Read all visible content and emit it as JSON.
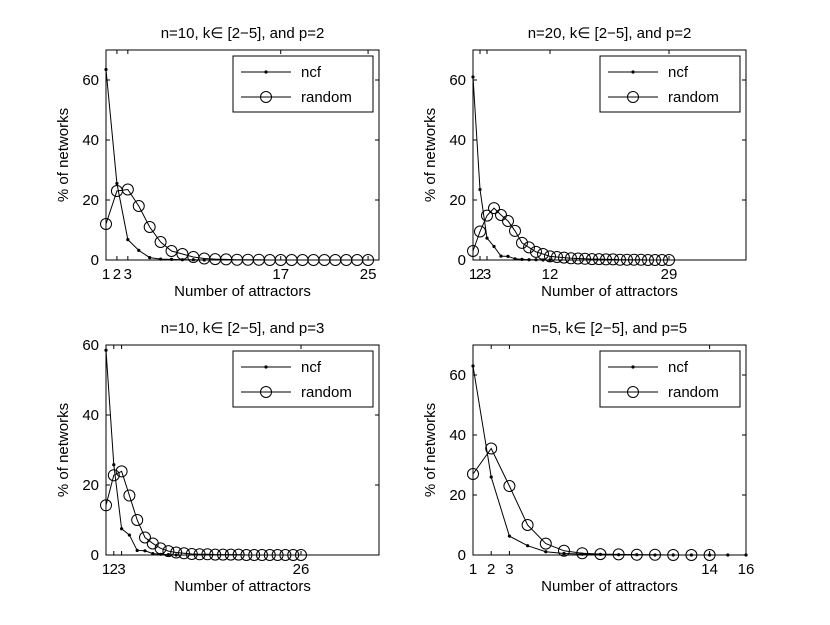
{
  "chart_data": [
    {
      "type": "line",
      "title": "n=10, k∈ [2−5], and p=2",
      "xlabel": "Number of attractors",
      "ylabel": "% of networks",
      "xlim": [
        1,
        26
      ],
      "ylim": [
        0,
        70
      ],
      "xticks": [
        1,
        2,
        3,
        17,
        25
      ],
      "yticks": [
        0,
        20,
        40,
        60
      ],
      "legend": {
        "placement": "top-right",
        "entries": [
          "ncf",
          "random"
        ]
      },
      "grid": false,
      "series": [
        {
          "name": "ncf",
          "marker": "dot",
          "x": [
            1,
            2,
            3,
            4,
            5,
            6,
            7,
            8,
            9,
            10
          ],
          "y": [
            63.5,
            25.5,
            6.8,
            3.2,
            0.8,
            0.3,
            0.2,
            0.1,
            0.1,
            0
          ]
        },
        {
          "name": "random",
          "marker": "circle",
          "x": [
            1,
            2,
            3,
            4,
            5,
            6,
            7,
            8,
            9,
            10,
            11,
            12,
            13,
            14,
            15,
            16,
            17,
            18,
            19,
            20,
            21,
            22,
            23,
            24,
            25
          ],
          "y": [
            12,
            23,
            23.5,
            18,
            11,
            6,
            3,
            2,
            1,
            0.5,
            0.3,
            0.2,
            0.1,
            0.1,
            0.1,
            0,
            0,
            0,
            0,
            0,
            0,
            0,
            0,
            0,
            0
          ]
        }
      ]
    },
    {
      "type": "line",
      "title": "n=20, k∈ [2−5], and p=2",
      "xlabel": "Number of attractors",
      "ylabel": "% of networks",
      "xlim": [
        1,
        40
      ],
      "ylim": [
        0,
        70
      ],
      "xticks": [
        1,
        2,
        3,
        12,
        29
      ],
      "yticks": [
        0,
        20,
        40,
        60
      ],
      "legend": {
        "placement": "top-right",
        "entries": [
          "ncf",
          "random"
        ]
      },
      "grid": false,
      "series": [
        {
          "name": "ncf",
          "marker": "dot",
          "x": [
            1,
            2,
            3,
            4,
            5,
            6,
            7,
            8,
            9,
            10,
            11,
            12
          ],
          "y": [
            61,
            23.5,
            7.3,
            4.5,
            1.3,
            1.2,
            0.4,
            0.2,
            0.1,
            0.1,
            0,
            0
          ]
        },
        {
          "name": "random",
          "marker": "circle",
          "x": [
            1,
            2,
            3,
            4,
            5,
            6,
            7,
            8,
            9,
            10,
            11,
            12,
            13,
            14,
            15,
            16,
            17,
            18,
            19,
            20,
            21,
            22,
            23,
            24,
            25,
            26,
            27,
            28,
            29
          ],
          "y": [
            3,
            9.5,
            14.8,
            17.3,
            15,
            13,
            9.7,
            5.7,
            4.2,
            2.7,
            2,
            1.2,
            1,
            0.8,
            0.6,
            0.5,
            0.4,
            0.3,
            0.3,
            0.2,
            0.2,
            0.1,
            0.1,
            0.1,
            0.1,
            0,
            0,
            0,
            0
          ]
        }
      ]
    },
    {
      "type": "line",
      "title": "n=10, k∈ [2−5], and p=3",
      "xlabel": "Number of attractors",
      "ylabel": "% of networks",
      "xlim": [
        1,
        36
      ],
      "ylim": [
        0,
        60
      ],
      "xticks": [
        1,
        2,
        3,
        26
      ],
      "yticks": [
        0,
        20,
        40,
        60
      ],
      "legend": {
        "placement": "top-right",
        "entries": [
          "ncf",
          "random"
        ]
      },
      "grid": false,
      "series": [
        {
          "name": "ncf",
          "marker": "dot",
          "x": [
            1,
            2,
            3,
            4,
            5,
            6,
            7,
            8,
            9,
            10
          ],
          "y": [
            58.5,
            25.8,
            7.5,
            5.7,
            1.3,
            1.2,
            0.4,
            0.2,
            0.1,
            0
          ]
        },
        {
          "name": "random",
          "marker": "circle",
          "x": [
            1,
            2,
            3,
            4,
            5,
            6,
            7,
            8,
            9,
            10,
            11,
            12,
            13,
            14,
            15,
            16,
            17,
            18,
            19,
            20,
            21,
            22,
            23,
            24,
            25,
            26
          ],
          "y": [
            14.2,
            22.8,
            23.9,
            17,
            10,
            5,
            3.3,
            1.9,
            1.1,
            0.7,
            0.5,
            0.3,
            0.2,
            0.2,
            0.1,
            0.1,
            0.1,
            0.1,
            0,
            0,
            0,
            0,
            0,
            0,
            0,
            0
          ]
        }
      ]
    },
    {
      "type": "line",
      "title": "n=5, k∈ [2−5], and p=5",
      "xlabel": "Number of attractors",
      "ylabel": "% of networks",
      "xlim": [
        1,
        16
      ],
      "ylim": [
        0,
        70
      ],
      "xticks": [
        1,
        2,
        3,
        14,
        16
      ],
      "xticklabels": [
        "1",
        "2",
        "3",
        "14",
        "16"
      ],
      "yticks": [
        0,
        20,
        40,
        60
      ],
      "legend": {
        "placement": "top-right",
        "entries": [
          "ncf",
          "random"
        ]
      },
      "grid": false,
      "series": [
        {
          "name": "ncf",
          "marker": "dot",
          "x": [
            1,
            2,
            3,
            4,
            5,
            6,
            7,
            8,
            9,
            10,
            11,
            12,
            13,
            14,
            15,
            16
          ],
          "y": [
            63,
            26,
            6.3,
            3.1,
            1.1,
            0.5,
            0.3,
            0.2,
            0.1,
            0.1,
            0,
            0,
            0,
            0,
            0,
            0
          ]
        },
        {
          "name": "random",
          "marker": "circle",
          "x": [
            1,
            2,
            3,
            4,
            5,
            6,
            7,
            8,
            9,
            10,
            11,
            12,
            13,
            14
          ],
          "y": [
            27,
            35.5,
            23,
            10,
            3.8,
            1.4,
            0.6,
            0.3,
            0.2,
            0.1,
            0.1,
            0,
            0,
            0
          ]
        }
      ]
    }
  ]
}
